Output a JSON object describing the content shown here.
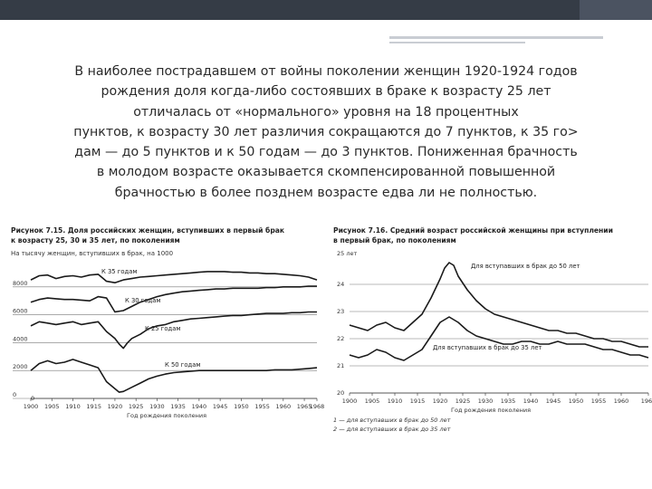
{
  "paragraph": {
    "lines": [
      "В наиболее пострадавшем от войны поколении женщин 1920-1924 годов",
      "рождения доля когда-либо состоявших в браке к возрасту 25 лет",
      "отличалась от «нормального» уровня на 18 процентных",
      "пунктов, к возрасту 30 лет различия сокращаются до 7 пунктов, к 35 го>",
      "дам — до 5 пунктов и к 50 годам — до 3 пунктов. Пониженная брачность",
      "в молодом возрасте оказывается скомпенсированной повышенной",
      "брачностью в более позднем возрасте едва ли не полностью."
    ]
  },
  "colors": {
    "topbar": "#353c46",
    "line": "#1a1a1a",
    "text": "#222222"
  },
  "chart_data": [
    {
      "type": "line",
      "title_lines": [
        "Рисунок 7.15. Доля российских женщин, вступивших в первый брак",
        "к возрасту 25, 30 и 35 лет, по поколениям"
      ],
      "ylabel": "На тысячу женщин, вступивших в брак, на 1000",
      "xlabel": "Год рождения поколения",
      "xlim": [
        1900,
        1968
      ],
      "ylim": [
        0,
        10000
      ],
      "x_ticks": [
        "1900",
        "1905",
        "1910",
        "1915",
        "1920",
        "1925",
        "1930",
        "1935",
        "1940",
        "1945",
        "1950",
        "1955",
        "1960",
        "1965",
        "1968"
      ],
      "y_ticks": [
        "8000",
        "6000",
        "4000",
        "2000",
        "0"
      ],
      "series": [
        {
          "name": "К 35 годам",
          "x": [
            1900,
            1902,
            1904,
            1906,
            1908,
            1910,
            1912,
            1914,
            1916,
            1918,
            1920,
            1922,
            1924,
            1926,
            1928,
            1930,
            1932,
            1934,
            1936,
            1938,
            1940,
            1942,
            1944,
            1946,
            1948,
            1950,
            1952,
            1954,
            1956,
            1958,
            1960,
            1962,
            1964,
            1966,
            1968
          ],
          "y": [
            8500,
            8800,
            8850,
            8600,
            8750,
            8800,
            8700,
            8850,
            8900,
            8400,
            8300,
            8500,
            8600,
            8700,
            8750,
            8800,
            8850,
            8900,
            8950,
            9000,
            9050,
            9100,
            9100,
            9100,
            9050,
            9050,
            9000,
            9000,
            8950,
            8950,
            8900,
            8850,
            8800,
            8700,
            8500
          ]
        },
        {
          "name": "К 30 годам",
          "x": [
            1900,
            1902,
            1904,
            1906,
            1908,
            1910,
            1912,
            1914,
            1916,
            1918,
            1920,
            1922,
            1924,
            1926,
            1928,
            1930,
            1932,
            1934,
            1936,
            1938,
            1940,
            1942,
            1944,
            1946,
            1948,
            1950,
            1952,
            1954,
            1956,
            1958,
            1960,
            1962,
            1964,
            1966,
            1968
          ],
          "y": [
            6900,
            7100,
            7200,
            7150,
            7100,
            7100,
            7050,
            7000,
            7300,
            7200,
            6200,
            6300,
            6600,
            6900,
            7100,
            7300,
            7450,
            7550,
            7650,
            7700,
            7750,
            7800,
            7850,
            7850,
            7900,
            7900,
            7900,
            7900,
            7950,
            7950,
            8000,
            8000,
            8000,
            8050,
            8050
          ]
        },
        {
          "name": "К 25 годам",
          "x": [
            1900,
            1902,
            1904,
            1906,
            1908,
            1910,
            1912,
            1914,
            1916,
            1918,
            1920,
            1921,
            1922,
            1923,
            1924,
            1926,
            1928,
            1930,
            1932,
            1934,
            1936,
            1938,
            1940,
            1942,
            1944,
            1946,
            1948,
            1950,
            1952,
            1954,
            1956,
            1958,
            1960,
            1962,
            1964,
            1966,
            1968
          ],
          "y": [
            5200,
            5500,
            5400,
            5300,
            5400,
            5500,
            5300,
            5400,
            5500,
            4800,
            4300,
            3900,
            3600,
            4000,
            4300,
            4600,
            5000,
            5200,
            5300,
            5500,
            5600,
            5700,
            5750,
            5800,
            5850,
            5900,
            5950,
            5950,
            6000,
            6050,
            6100,
            6100,
            6100,
            6150,
            6150,
            6200,
            6200
          ]
        },
        {
          "name": "К 50 годам",
          "x": [
            1900,
            1902,
            1904,
            1906,
            1908,
            1910,
            1912,
            1914,
            1916,
            1918,
            1920,
            1921,
            1922,
            1924,
            1926,
            1928,
            1930,
            1932,
            1934,
            1936,
            1938,
            1940,
            1942,
            1944,
            1946,
            1948,
            1950,
            1952,
            1954,
            1956,
            1958,
            1960,
            1962,
            1964,
            1966,
            1968
          ],
          "y": [
            2000,
            2500,
            2700,
            2500,
            2600,
            2800,
            2600,
            2400,
            2200,
            1200,
            700,
            450,
            500,
            800,
            1100,
            1400,
            1600,
            1750,
            1850,
            1900,
            1950,
            2000,
            2000,
            2000,
            2000,
            2000,
            2000,
            2000,
            2000,
            2000,
            2050,
            2050,
            2050,
            2100,
            2150,
            2200
          ]
        }
      ]
    },
    {
      "type": "line",
      "title_lines": [
        "Рисунок 7.16. Средний возраст российской женщины при вступлении",
        "в первый брак, по поколениям"
      ],
      "ylabel": "25 лет",
      "xlabel": "Год рождения поколения",
      "xlim": [
        1900,
        1966
      ],
      "ylim": [
        20,
        25
      ],
      "x_ticks": [
        "1900",
        "1905",
        "1910",
        "1915",
        "1920",
        "1925",
        "1930",
        "1935",
        "1940",
        "1945",
        "1950",
        "1955",
        "1960",
        "1966"
      ],
      "y_ticks": [
        "24",
        "23",
        "22",
        "21",
        "20"
      ],
      "notes": [
        "1 — для вступавших в брак до 50 лет",
        "2 — для вступавших в брак до 35 лет"
      ],
      "series": [
        {
          "name": "Для вступавших в брак до 50 лет",
          "x": [
            1900,
            1902,
            1904,
            1906,
            1908,
            1910,
            1912,
            1914,
            1916,
            1918,
            1920,
            1921,
            1922,
            1923,
            1924,
            1926,
            1928,
            1930,
            1932,
            1934,
            1936,
            1938,
            1940,
            1942,
            1944,
            1946,
            1948,
            1950,
            1952,
            1954,
            1956,
            1958,
            1960,
            1962,
            1964,
            1966
          ],
          "y": [
            22.5,
            22.4,
            22.3,
            22.5,
            22.6,
            22.4,
            22.3,
            22.6,
            22.9,
            23.5,
            24.2,
            24.6,
            24.8,
            24.7,
            24.3,
            23.8,
            23.4,
            23.1,
            22.9,
            22.8,
            22.7,
            22.6,
            22.5,
            22.4,
            22.3,
            22.3,
            22.2,
            22.2,
            22.1,
            22.0,
            22.0,
            21.9,
            21.9,
            21.8,
            21.7,
            21.7
          ]
        },
        {
          "name": "Для вступавших в брак до 35 лет",
          "x": [
            1900,
            1902,
            1904,
            1906,
            1908,
            1910,
            1912,
            1914,
            1916,
            1918,
            1920,
            1922,
            1924,
            1926,
            1928,
            1930,
            1932,
            1934,
            1936,
            1938,
            1940,
            1942,
            1944,
            1946,
            1948,
            1950,
            1952,
            1954,
            1956,
            1958,
            1960,
            1962,
            1964,
            1966
          ],
          "y": [
            21.4,
            21.3,
            21.4,
            21.6,
            21.5,
            21.3,
            21.2,
            21.4,
            21.6,
            22.1,
            22.6,
            22.8,
            22.6,
            22.3,
            22.1,
            22.0,
            21.9,
            21.8,
            21.8,
            21.9,
            21.9,
            21.8,
            21.8,
            21.9,
            21.8,
            21.8,
            21.8,
            21.7,
            21.6,
            21.6,
            21.5,
            21.4,
            21.4,
            21.3
          ]
        }
      ]
    }
  ]
}
